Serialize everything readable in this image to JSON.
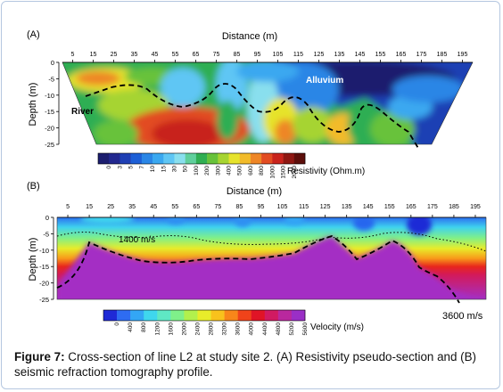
{
  "panel_a": {
    "label": "(A)",
    "x_title": "Distance (m)",
    "y_title": "Depth (m)",
    "x_ticks": [
      "5",
      "15",
      "25",
      "35",
      "45",
      "55",
      "65",
      "75",
      "85",
      "95",
      "105",
      "115",
      "125",
      "135",
      "145",
      "155",
      "165",
      "175",
      "185",
      "195"
    ],
    "y_ticks": [
      "0",
      "-5",
      "-10",
      "-15",
      "-20",
      "-25"
    ],
    "annotations": {
      "alluvium": "Alluvium",
      "river": "River"
    },
    "colorbar": {
      "title": "Resistivity (Ohm.m)",
      "ticks": [
        "0",
        "3",
        "5",
        "7",
        "10",
        "15",
        "30",
        "50",
        "100",
        "200",
        "300",
        "400",
        "500",
        "600",
        "800",
        "1000",
        "1500",
        "2000"
      ],
      "colors": [
        "#1b1d6e",
        "#22288f",
        "#1f3fb4",
        "#1d5fd6",
        "#2a86e6",
        "#3aa8f0",
        "#5fc6f4",
        "#89dfee",
        "#5fcf9c",
        "#2fae52",
        "#67c23a",
        "#a6d431",
        "#e6e32c",
        "#f2bb2a",
        "#ee8626",
        "#e24c22",
        "#c8231c",
        "#8e1712",
        "#5c0e0a"
      ]
    }
  },
  "panel_b": {
    "label": "(B)",
    "x_title": "Distance (m)",
    "y_title": "Depth (m)",
    "x_ticks": [
      "5",
      "15",
      "25",
      "35",
      "45",
      "55",
      "65",
      "75",
      "85",
      "95",
      "105",
      "115",
      "125",
      "135",
      "145",
      "155",
      "165",
      "175",
      "185",
      "195"
    ],
    "y_ticks": [
      "0",
      "-5",
      "-10",
      "-15",
      "-20",
      "-25"
    ],
    "annotations": {
      "v1400": "1400 m/s",
      "v3600": "3600 m/s"
    },
    "colorbar": {
      "title": "Velocity (m/s)",
      "ticks": [
        "0",
        "400",
        "800",
        "1200",
        "1600",
        "2000",
        "2400",
        "2800",
        "3200",
        "3600",
        "4000",
        "4400",
        "4800",
        "5200",
        "5600"
      ],
      "colors": [
        "#1f2ad6",
        "#2e6cf2",
        "#33a6f5",
        "#3fd7ee",
        "#5fe8c4",
        "#7ff08a",
        "#b2f04d",
        "#e8ec2a",
        "#f8c21c",
        "#f8861a",
        "#f0431a",
        "#e01426",
        "#d11a62",
        "#b9289e",
        "#9a2fc6"
      ]
    }
  },
  "caption": {
    "label": "Figure 7:",
    "text": "Cross-section of line L2 at study site 2. (A) Resistivity pseudo-section and (B) seismic refraction tomography profile."
  }
}
